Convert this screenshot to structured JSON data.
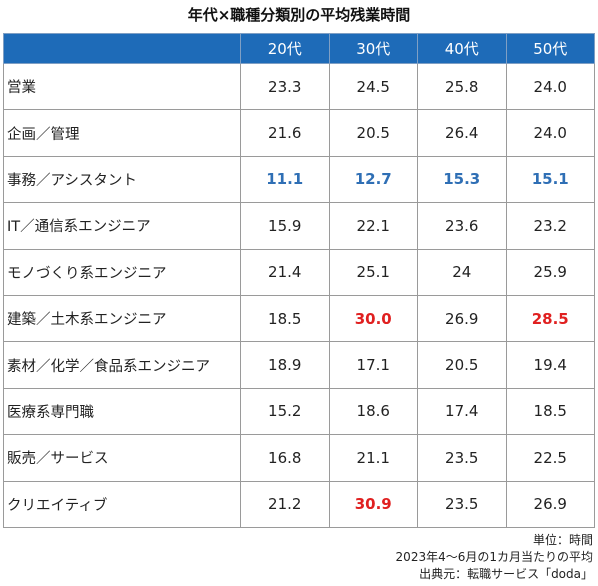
{
  "title": "年代×職種分類別の平均残業時間",
  "chart_data": {
    "type": "table",
    "title": "年代×職種分類別の平均残業時間",
    "columns": [
      "20代",
      "30代",
      "40代",
      "50代"
    ],
    "rows": [
      {
        "label": "営業",
        "values": [
          "23.3",
          "24.5",
          "25.8",
          "24.0"
        ],
        "styles": [
          "",
          "",
          "",
          ""
        ]
      },
      {
        "label": "企画／管理",
        "values": [
          "21.6",
          "20.5",
          "26.4",
          "24.0"
        ],
        "styles": [
          "",
          "",
          "",
          ""
        ]
      },
      {
        "label": "事務／アシスタント",
        "values": [
          "11.1",
          "12.7",
          "15.3",
          "15.1"
        ],
        "styles": [
          "blue",
          "blue",
          "blue",
          "blue"
        ]
      },
      {
        "label": "IT／通信系エンジニア",
        "values": [
          "15.9",
          "22.1",
          "23.6",
          "23.2"
        ],
        "styles": [
          "",
          "",
          "",
          ""
        ]
      },
      {
        "label": "モノづくり系エンジニア",
        "values": [
          "21.4",
          "25.1",
          "24",
          "25.9"
        ],
        "styles": [
          "",
          "",
          "",
          ""
        ]
      },
      {
        "label": "建築／土木系エンジニア",
        "values": [
          "18.5",
          "30.0",
          "26.9",
          "28.5"
        ],
        "styles": [
          "",
          "red",
          "",
          "red"
        ]
      },
      {
        "label": "素材／化学／食品系エンジニア",
        "values": [
          "18.9",
          "17.1",
          "20.5",
          "19.4"
        ],
        "styles": [
          "",
          "",
          "",
          ""
        ]
      },
      {
        "label": "医療系専門職",
        "values": [
          "15.2",
          "18.6",
          "17.4",
          "18.5"
        ],
        "styles": [
          "",
          "",
          "",
          ""
        ]
      },
      {
        "label": "販売／サービス",
        "values": [
          "16.8",
          "21.1",
          "23.5",
          "22.5"
        ],
        "styles": [
          "",
          "",
          "",
          ""
        ]
      },
      {
        "label": "クリエイティブ",
        "values": [
          "21.2",
          "30.9",
          "23.5",
          "26.9"
        ],
        "styles": [
          "",
          "red",
          "",
          ""
        ]
      }
    ],
    "colors": {
      "header_bg": "#1e6bb8",
      "header_text": "#ffffff",
      "low": "#2f6fb5",
      "high": "#e02020"
    }
  },
  "notes": {
    "unit": "単位：時間",
    "period": "2023年4～6月の1カ月当たりの平均",
    "source": "出典元：転職サービス「doda」"
  }
}
